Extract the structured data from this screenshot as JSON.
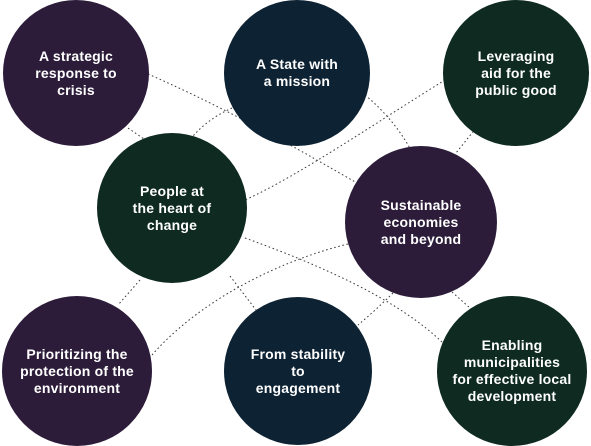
{
  "nodes": [
    {
      "lines": [
        "A strategic",
        "response to",
        "crisis"
      ],
      "color": "#2c1c3a"
    },
    {
      "lines": [
        "A State with",
        "a mission"
      ],
      "color": "#0d2233"
    },
    {
      "lines": [
        "Leveraging",
        "aid for the",
        "public good"
      ],
      "color": "#0e2a21"
    },
    {
      "lines": [
        "People at",
        "the heart of",
        "change"
      ],
      "color": "#0e2a21"
    },
    {
      "lines": [
        "Sustainable",
        "economies",
        "and beyond"
      ],
      "color": "#2c1c3a"
    },
    {
      "lines": [
        "Prioritizing the",
        "protection of the",
        "environment"
      ],
      "color": "#2c1c3a"
    },
    {
      "lines": [
        "From stability",
        "to",
        "engagement"
      ],
      "color": "#0d2233"
    },
    {
      "lines": [
        "Enabling",
        "municipalities",
        "for effective local",
        "development"
      ],
      "color": "#0e2a21"
    }
  ]
}
